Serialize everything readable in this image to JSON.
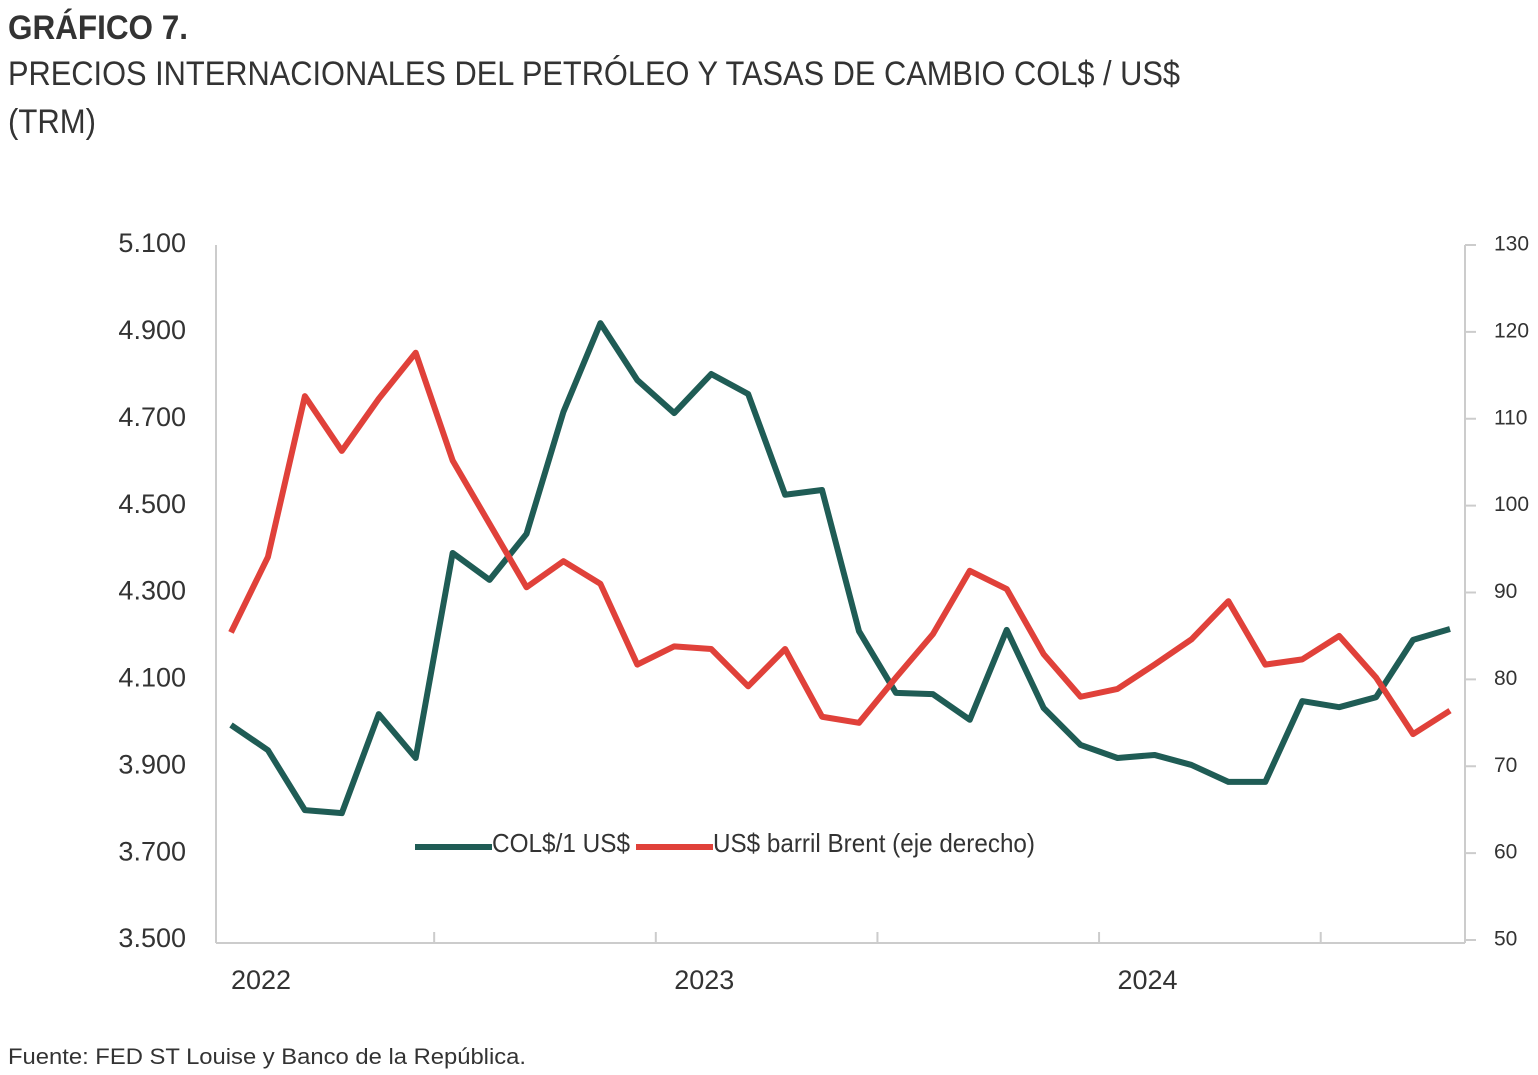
{
  "chart_data": {
    "type": "line",
    "title": "GRÁFICO 7.",
    "subtitle": [
      "PRECIOS INTERNACIONALES DEL PETRÓLEO Y TASAS DE CAMBIO COL$ / US$",
      "(TRM)"
    ],
    "source": "Fuente: FED ST Louise y Banco de la República.",
    "categories": [
      "2022",
      null,
      null,
      null,
      null,
      null,
      null,
      null,
      null,
      null,
      null,
      null,
      "2023",
      null,
      null,
      null,
      null,
      null,
      null,
      null,
      null,
      null,
      null,
      null,
      "2024",
      null,
      null,
      null,
      null,
      null,
      null,
      null,
      null,
      null
    ],
    "series": [
      {
        "name": "COL$/1 US$",
        "color": "#1f5c55",
        "axis": "y",
        "values": [
          3995,
          3937,
          3799,
          3792,
          4020,
          3919,
          4391,
          4329,
          4435,
          4716,
          4920,
          4789,
          4713,
          4803,
          4757,
          4525,
          4536,
          4211,
          4069,
          4066,
          4007,
          4214,
          4034,
          3949,
          3919,
          3926,
          3903,
          3864,
          3864,
          4050,
          4036,
          4059,
          4191,
          4216
        ]
      },
      {
        "name": "US$ barril Brent (eje derecho)",
        "color": "#e0413a",
        "axis": "y2",
        "values": [
          85.4,
          94.1,
          112.6,
          106.3,
          112.3,
          117.6,
          105.2,
          97.9,
          90.6,
          93.6,
          91.0,
          81.7,
          83.8,
          83.5,
          79.2,
          83.5,
          75.7,
          75.0,
          80.2,
          85.2,
          92.5,
          90.4,
          82.9,
          78.0,
          78.9,
          81.7,
          84.6,
          89.0,
          81.7,
          82.3,
          85.0,
          80.2,
          73.7,
          76.4
        ]
      }
    ],
    "ylim": [
      3500,
      5100
    ],
    "yticks": [
      {
        "value": 3500,
        "label": "3.500"
      },
      {
        "value": 3700,
        "label": "3.700"
      },
      {
        "value": 3900,
        "label": "3.900"
      },
      {
        "value": 4100,
        "label": "4.100"
      },
      {
        "value": 4300,
        "label": "4.300"
      },
      {
        "value": 4500,
        "label": "4.500"
      },
      {
        "value": 4700,
        "label": "4.700"
      },
      {
        "value": 4900,
        "label": "4.900"
      },
      {
        "value": 5100,
        "label": "5.100"
      }
    ],
    "y2lim": [
      50,
      130
    ],
    "y2ticks": [
      50,
      60,
      70,
      80,
      90,
      100,
      110,
      120,
      130
    ],
    "grid": false
  }
}
